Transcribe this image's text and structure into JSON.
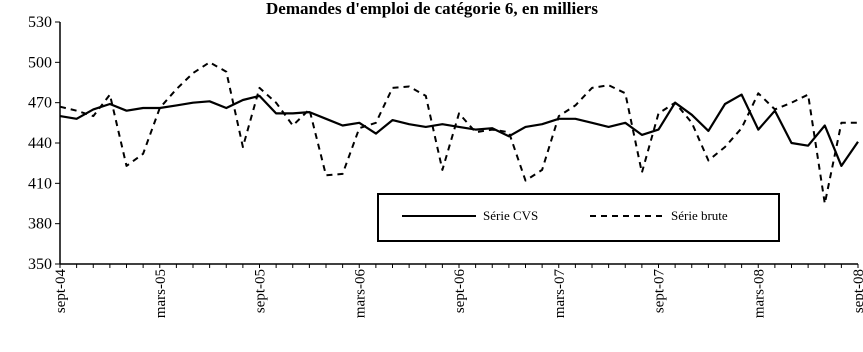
{
  "chart_data": {
    "type": "line",
    "title": "Demandes d'emploi de catégorie 6, en milliers",
    "xlabel": "",
    "ylabel": "",
    "ylim": [
      350,
      530
    ],
    "yticks": [
      "350",
      "380",
      "410",
      "440",
      "470",
      "500",
      "530"
    ],
    "xticks": [
      "sept-04",
      "mars-05",
      "sept-05",
      "mars-06",
      "sept-06",
      "mars-07",
      "sept-07",
      "mars-08",
      "sept-08"
    ],
    "x": [
      "sept-04",
      "oct-04",
      "nov-04",
      "déc-04",
      "janv-05",
      "févr-05",
      "mars-05",
      "avr-05",
      "mai-05",
      "juin-05",
      "juil-05",
      "août-05",
      "sept-05",
      "oct-05",
      "nov-05",
      "déc-05",
      "janv-06",
      "févr-06",
      "mars-06",
      "avr-06",
      "mai-06",
      "juin-06",
      "juil-06",
      "août-06",
      "sept-06",
      "oct-06",
      "nov-06",
      "déc-06",
      "janv-07",
      "févr-07",
      "mars-07",
      "avr-07",
      "mai-07",
      "juin-07",
      "juil-07",
      "août-07",
      "sept-07",
      "oct-07",
      "nov-07",
      "déc-07",
      "janv-08",
      "févr-08",
      "mars-08",
      "avr-08",
      "mai-08",
      "juin-08",
      "juil-08",
      "août-08",
      "sept-08"
    ],
    "grid": false,
    "legend_position": "lower-right",
    "series": [
      {
        "name": "Série CVS",
        "style": "solid",
        "color": "#000000",
        "values": [
          460,
          458,
          465,
          469,
          464,
          466,
          466,
          468,
          470,
          471,
          466,
          472,
          475,
          462,
          462,
          463,
          458,
          453,
          455,
          447,
          457,
          454,
          452,
          454,
          452,
          450,
          451,
          445,
          452,
          454,
          458,
          458,
          455,
          452,
          455,
          446,
          450,
          470,
          461,
          449,
          469,
          476,
          450,
          464,
          440,
          438,
          453,
          423,
          441
        ]
      },
      {
        "name": "Série brute",
        "style": "dashed",
        "color": "#000000",
        "values": [
          467,
          464,
          460,
          476,
          423,
          432,
          466,
          480,
          492,
          500,
          493,
          437,
          481,
          470,
          453,
          465,
          416,
          417,
          451,
          455,
          481,
          482,
          475,
          420,
          462,
          448,
          450,
          448,
          412,
          420,
          460,
          468,
          481,
          483,
          477,
          418,
          462,
          470,
          455,
          427,
          437,
          451,
          477,
          465,
          470,
          476,
          395,
          455,
          455
        ]
      }
    ]
  }
}
